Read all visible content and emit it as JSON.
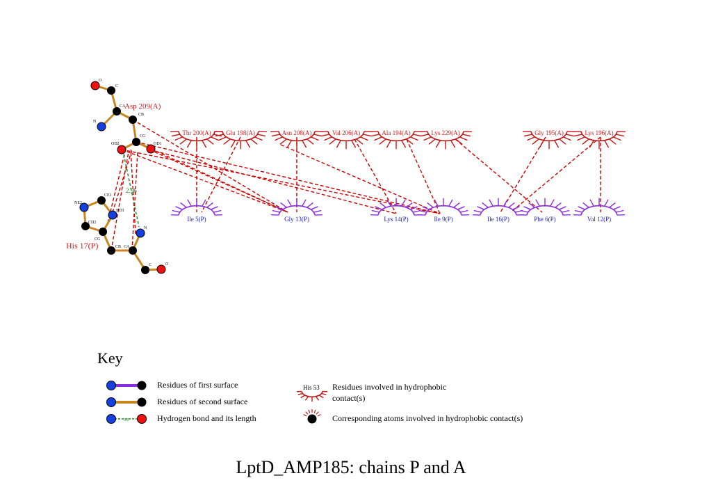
{
  "title": "LptD_AMP185: chains P and A",
  "hbond_label": "2.96",
  "ligand_residues": {
    "asp": "Asp 209(A)",
    "his": "His 17(P)"
  },
  "atom_labels": {
    "asp_o": "O",
    "asp_c": "C",
    "asp_ca": "CA",
    "asp_n": "N",
    "asp_cb": "CB",
    "asp_cg": "CG",
    "asp_od2": "OD2",
    "asp_od1": "OD1",
    "his_ne2": "NE2",
    "his_ce1": "CE1",
    "his_cd2": "CD2",
    "his_cg": "CG",
    "his_nd1": "ND1",
    "his_cb": "CB",
    "his_ca": "CA",
    "his_n": "N",
    "his_c": "C",
    "his_o": "O"
  },
  "hydrophobic_A": [
    "Thr 200(A)",
    "Glu 198(A)",
    "Asn 208(A)",
    "Val 206(A)",
    "Ala 194(A)",
    "Lys 229(A)",
    "Gly 195(A)",
    "Lys 196(A)"
  ],
  "hydrophobic_P": [
    "Ile 5(P)",
    "Gly 13(P)",
    "Lys 14(P)",
    "Ile 9(P)",
    "Ile 16(P)",
    "Phe 6(P)",
    "Val 12(P)"
  ],
  "key": {
    "heading": "Key",
    "first_surface": "Residues of first surface",
    "second_surface": "Residues of second surface",
    "hbond": "Hydrogen bond and its length",
    "hbond_sample": "3.0",
    "hydrophobic_example": "His 53",
    "hydrophobic_line1": "Residues involved in hydrophobic",
    "hydrophobic_line2": "contact(s)",
    "corresponding_atoms": "Corresponding atoms involved in hydrophobic contact(s)"
  },
  "colors": {
    "chain_A_label": "#d11a1a",
    "chain_P_label": "#1a1acc",
    "arc_A": "#c41616",
    "arc_P": "#8a2be2",
    "bond": "#c8861e",
    "contact_line": "#cc0000",
    "hbond_line": "#1f8a1f",
    "oxygen": "#ee1111",
    "nitrogen": "#1540e0",
    "carbon": "#000000"
  }
}
